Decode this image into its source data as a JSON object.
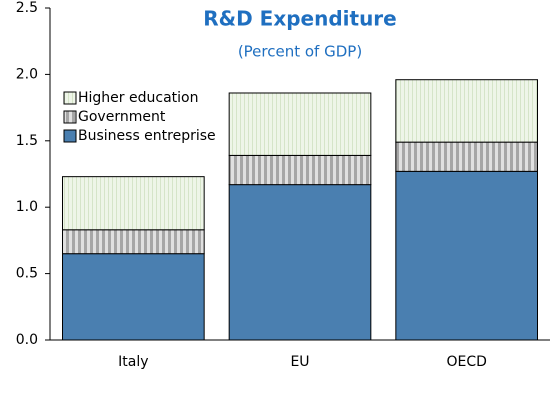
{
  "chart_data": {
    "type": "stacked_bar",
    "title": "R&D Expenditure",
    "subtitle": "(Percent of GDP)",
    "categories": [
      "Italy",
      "EU",
      "OECD"
    ],
    "series": [
      {
        "name": "Business entreprise",
        "color": "#4a7fb0",
        "values": [
          0.65,
          1.17,
          1.27
        ]
      },
      {
        "name": "Government",
        "color": "#bdbdbd",
        "values": [
          0.18,
          0.22,
          0.22
        ]
      },
      {
        "name": "Higher education",
        "color": "#e6f0dc",
        "values": [
          0.4,
          0.47,
          0.47
        ]
      }
    ],
    "ylim": [
      0,
      2.5
    ],
    "yticks": [
      {
        "value": 0,
        "label": "0.0"
      },
      0.5,
      {
        "value": 1,
        "label": "1.0"
      },
      1.5,
      {
        "value": 2,
        "label": "2.0"
      },
      2.5
    ],
    "legend": "upper-left"
  }
}
